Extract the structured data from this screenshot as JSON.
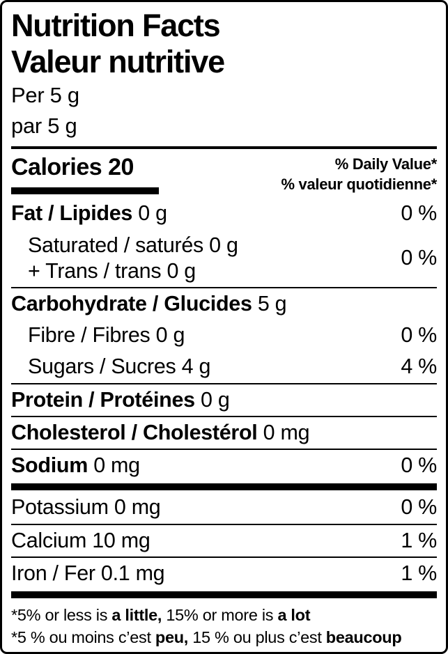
{
  "colors": {
    "ink": "#000000",
    "background": "#ffffff"
  },
  "header": {
    "title_en": "Nutrition Facts",
    "title_fr": "Valeur nutritive",
    "serving_en": "Per 5 g",
    "serving_fr": "par 5 g"
  },
  "calories": {
    "label": "Calories",
    "value": "20"
  },
  "daily_value": {
    "en": "% Daily Value*",
    "fr": "% valeur quotidienne*"
  },
  "nutrients": {
    "fat": {
      "name": "Fat / Lipides",
      "amount": "0 g",
      "dv": "0 %"
    },
    "saturated": {
      "name": "Saturated / saturés 0 g",
      "name2": "+ Trans / trans 0 g",
      "dv": "0 %"
    },
    "carbohydrate": {
      "name": "Carbohydrate / Glucides",
      "amount": "5 g"
    },
    "fibre": {
      "name": "Fibre / Fibres 0 g",
      "dv": "0 %"
    },
    "sugars": {
      "name": "Sugars / Sucres 4 g",
      "dv": "4 %"
    },
    "protein": {
      "name": "Protein / Protéines",
      "amount": "0 g"
    },
    "cholesterol": {
      "name": "Cholesterol / Cholestérol",
      "amount": "0 mg"
    },
    "sodium": {
      "name": "Sodium",
      "amount": "0 mg",
      "dv": "0 %"
    },
    "potassium": {
      "name": "Potassium 0 mg",
      "dv": "0 %"
    },
    "calcium": {
      "name": "Calcium 10 mg",
      "dv": "1 %"
    },
    "iron": {
      "name": "Iron / Fer 0.1 mg",
      "dv": "1 %"
    }
  },
  "footnote": {
    "en_1": "*5% or less is ",
    "en_bold_1": "a little,",
    "en_2": " 15% or more is ",
    "en_bold_2": "a lot",
    "fr_1": "*5 % ou moins c’est ",
    "fr_bold_1": "peu,",
    "fr_2": " 15 % ou plus c’est ",
    "fr_bold_2": "beaucoup"
  }
}
